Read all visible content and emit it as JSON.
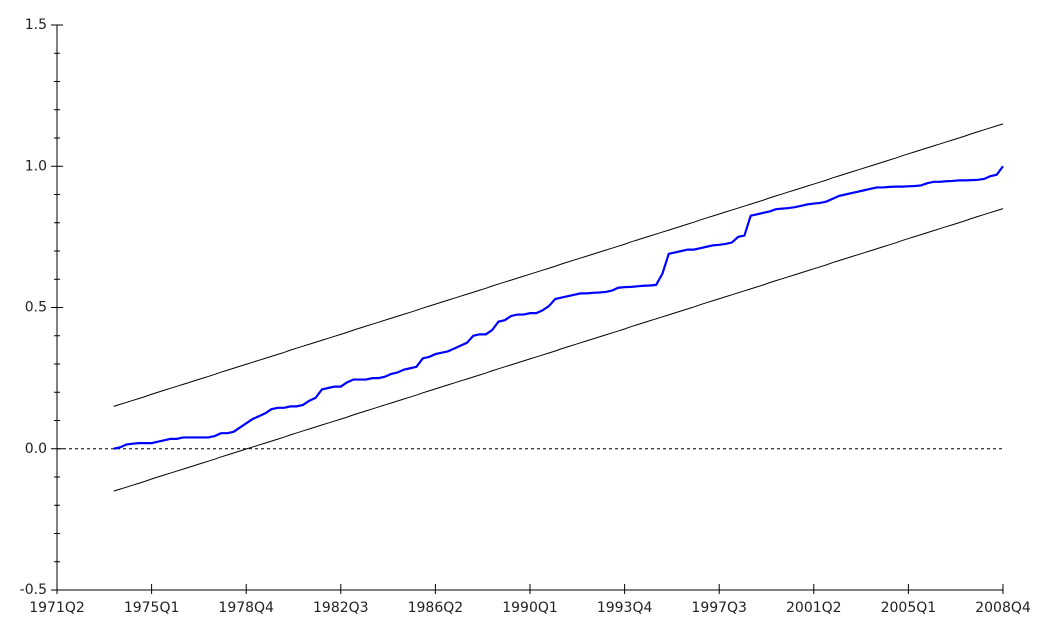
{
  "chart_data": {
    "type": "line",
    "categories": [
      "1971Q2",
      null,
      null,
      null,
      null,
      null,
      null,
      null,
      null,
      null,
      null,
      null,
      null,
      null,
      null,
      "1975Q1",
      null,
      null,
      null,
      null,
      null,
      null,
      null,
      null,
      null,
      null,
      null,
      null,
      null,
      null,
      "1978Q4",
      null,
      null,
      null,
      null,
      null,
      null,
      null,
      null,
      null,
      null,
      null,
      null,
      null,
      null,
      "1982Q3",
      null,
      null,
      null,
      null,
      null,
      null,
      null,
      null,
      null,
      null,
      null,
      null,
      null,
      null,
      "1986Q2",
      null,
      null,
      null,
      null,
      null,
      null,
      null,
      null,
      null,
      null,
      null,
      null,
      null,
      null,
      "1990Q1",
      null,
      null,
      null,
      null,
      null,
      null,
      null,
      null,
      null,
      null,
      null,
      null,
      null,
      null,
      "1993Q4",
      null,
      null,
      null,
      null,
      null,
      null,
      null,
      null,
      null,
      null,
      null,
      null,
      null,
      null,
      "1997Q3",
      null,
      null,
      null,
      null,
      null,
      null,
      null,
      null,
      null,
      null,
      null,
      null,
      null,
      null,
      "2001Q2",
      null,
      null,
      null,
      null,
      null,
      null,
      null,
      null,
      null,
      null,
      null,
      null,
      null,
      null,
      "2005Q1",
      null,
      null,
      null,
      null,
      null,
      null,
      null,
      null,
      null,
      null,
      null,
      null,
      null,
      null,
      "2008Q4"
    ],
    "series": [
      {
        "color": "#0000ff",
        "width": 2.2,
        "values": [
          null,
          null,
          null,
          null,
          null,
          null,
          null,
          null,
          null,
          0,
          0.005,
          0.015,
          0.018,
          0.02,
          0.02,
          0.02,
          0.025,
          0.03,
          0.035,
          0.035,
          0.04,
          0.04,
          0.04,
          0.04,
          0.04,
          0.045,
          0.055,
          0.055,
          0.06,
          0.075,
          0.09,
          0.105,
          0.115,
          0.125,
          0.14,
          0.145,
          0.145,
          0.15,
          0.15,
          0.155,
          0.17,
          0.18,
          0.21,
          0.215,
          0.22,
          0.22,
          0.235,
          0.245,
          0.245,
          0.245,
          0.25,
          0.25,
          0.255,
          0.265,
          0.27,
          0.28,
          0.285,
          0.29,
          0.32,
          0.325,
          0.335,
          0.34,
          0.345,
          0.355,
          0.365,
          0.375,
          0.4,
          0.405,
          0.405,
          0.42,
          0.45,
          0.455,
          0.47,
          0.475,
          0.475,
          0.48,
          0.48,
          0.49,
          0.505,
          0.53,
          0.535,
          0.54,
          0.545,
          0.55,
          0.55,
          0.552,
          0.553,
          0.555,
          0.56,
          0.57,
          0.572,
          0.573,
          0.575,
          0.577,
          0.578,
          0.58,
          0.62,
          0.69,
          0.695,
          0.7,
          0.705,
          0.705,
          0.71,
          0.715,
          0.72,
          0.722,
          0.725,
          0.73,
          0.75,
          0.755,
          0.825,
          0.83,
          0.835,
          0.84,
          0.848,
          0.85,
          0.852,
          0.855,
          0.86,
          0.865,
          0.868,
          0.87,
          0.875,
          0.885,
          0.895,
          0.9,
          0.905,
          0.91,
          0.915,
          0.92,
          0.925,
          0.925,
          0.927,
          0.928,
          0.928,
          0.929,
          0.93,
          0.932,
          0.94,
          0.945,
          0.945,
          0.947,
          0.948,
          0.95,
          0.95,
          0.951,
          0.952,
          0.955,
          0.965,
          0.97,
          1.0
        ]
      },
      {
        "color": "#000000",
        "width": 1,
        "values": [
          null,
          null,
          null,
          null,
          null,
          null,
          null,
          null,
          null,
          0.15,
          0.157,
          0.164,
          0.171,
          0.178,
          0.185,
          0.193,
          0.2,
          0.207,
          0.214,
          0.221,
          0.228,
          0.235,
          0.242,
          0.249,
          0.256,
          0.263,
          0.271,
          0.278,
          0.285,
          0.292,
          0.299,
          0.306,
          0.313,
          0.32,
          0.327,
          0.334,
          0.341,
          0.349,
          0.356,
          0.363,
          0.37,
          0.377,
          0.384,
          0.391,
          0.398,
          0.405,
          0.412,
          0.42,
          0.427,
          0.434,
          0.441,
          0.448,
          0.455,
          0.462,
          0.469,
          0.476,
          0.483,
          0.49,
          0.498,
          0.505,
          0.512,
          0.519,
          0.526,
          0.533,
          0.54,
          0.547,
          0.554,
          0.561,
          0.568,
          0.576,
          0.583,
          0.59,
          0.597,
          0.604,
          0.611,
          0.618,
          0.625,
          0.632,
          0.639,
          0.646,
          0.654,
          0.661,
          0.668,
          0.675,
          0.682,
          0.689,
          0.696,
          0.703,
          0.71,
          0.717,
          0.724,
          0.732,
          0.739,
          0.746,
          0.753,
          0.76,
          0.767,
          0.774,
          0.781,
          0.788,
          0.795,
          0.802,
          0.81,
          0.817,
          0.824,
          0.831,
          0.838,
          0.845,
          0.852,
          0.859,
          0.866,
          0.873,
          0.88,
          0.888,
          0.895,
          0.902,
          0.909,
          0.916,
          0.923,
          0.93,
          0.937,
          0.944,
          0.951,
          0.959,
          0.966,
          0.973,
          0.98,
          0.987,
          0.994,
          1.001,
          1.008,
          1.015,
          1.022,
          1.029,
          1.037,
          1.044,
          1.051,
          1.058,
          1.065,
          1.072,
          1.079,
          1.086,
          1.093,
          1.1,
          1.107,
          1.115,
          1.122,
          1.129,
          1.136,
          1.143,
          1.15
        ]
      },
      {
        "color": "#000000",
        "width": 1,
        "values": [
          null,
          null,
          null,
          null,
          null,
          null,
          null,
          null,
          null,
          -0.15,
          -0.143,
          -0.136,
          -0.129,
          -0.122,
          -0.115,
          -0.107,
          -0.1,
          -0.093,
          -0.086,
          -0.079,
          -0.072,
          -0.065,
          -0.058,
          -0.051,
          -0.044,
          -0.037,
          -0.029,
          -0.022,
          -0.015,
          -0.008,
          -0.001,
          0.006,
          0.013,
          0.02,
          0.027,
          0.034,
          0.041,
          0.049,
          0.056,
          0.063,
          0.07,
          0.077,
          0.084,
          0.091,
          0.098,
          0.105,
          0.112,
          0.12,
          0.127,
          0.134,
          0.141,
          0.148,
          0.155,
          0.162,
          0.169,
          0.176,
          0.183,
          0.19,
          0.198,
          0.205,
          0.212,
          0.219,
          0.226,
          0.233,
          0.24,
          0.247,
          0.254,
          0.261,
          0.268,
          0.276,
          0.283,
          0.29,
          0.297,
          0.304,
          0.311,
          0.318,
          0.325,
          0.332,
          0.339,
          0.346,
          0.354,
          0.361,
          0.368,
          0.375,
          0.382,
          0.389,
          0.396,
          0.403,
          0.41,
          0.417,
          0.424,
          0.432,
          0.439,
          0.446,
          0.453,
          0.46,
          0.467,
          0.474,
          0.481,
          0.488,
          0.495,
          0.502,
          0.51,
          0.517,
          0.524,
          0.531,
          0.538,
          0.545,
          0.552,
          0.559,
          0.566,
          0.573,
          0.58,
          0.588,
          0.595,
          0.602,
          0.609,
          0.616,
          0.623,
          0.63,
          0.637,
          0.644,
          0.651,
          0.659,
          0.666,
          0.673,
          0.68,
          0.687,
          0.694,
          0.701,
          0.708,
          0.715,
          0.722,
          0.729,
          0.737,
          0.744,
          0.751,
          0.758,
          0.765,
          0.772,
          0.779,
          0.786,
          0.793,
          0.8,
          0.807,
          0.815,
          0.822,
          0.829,
          0.836,
          0.843,
          0.85
        ]
      }
    ],
    "reference_line": 0,
    "ylim": [
      -0.5,
      1.5
    ],
    "yticks": [
      -0.5,
      {
        "value": 0,
        "label": "0.0"
      },
      0.5,
      {
        "value": 1,
        "label": "1.0"
      },
      1.5
    ],
    "yminorticks": [
      -0.4,
      -0.3,
      -0.2,
      -0.1,
      0.1,
      0.2,
      0.3,
      0.4,
      0.6,
      0.7,
      0.8,
      0.9,
      1.1,
      1.2,
      1.3,
      1.4
    ],
    "grid": false
  }
}
